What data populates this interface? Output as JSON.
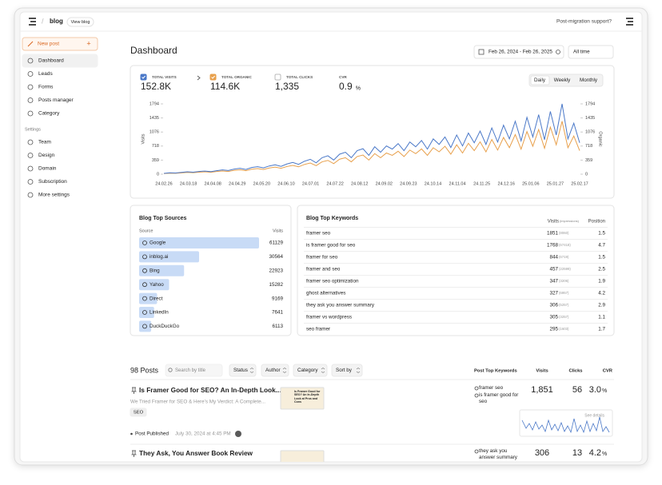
{
  "topbar": {
    "brand": "blog",
    "view_blog": "View blog",
    "support": "Post-migration support?"
  },
  "sidebar": {
    "new_post": "New post",
    "items": [
      "Dashboard",
      "Leads",
      "Forms",
      "Posts manager",
      "Category"
    ],
    "settings_label": "Settings",
    "settings_items": [
      "Team",
      "Design",
      "Domain",
      "Subscription",
      "More settings"
    ]
  },
  "dashboard": {
    "title": "Dashboard",
    "date_range": "Feb 26, 2024 - Feb 26, 2025",
    "period": "All time"
  },
  "metrics": [
    {
      "label": "TOTAL VISITS",
      "value": "152.8K"
    },
    {
      "label": "TOTAL ORGANIC",
      "value": "114.6K"
    },
    {
      "label": "TOTAL CLICKS",
      "value": "1,335"
    },
    {
      "label": "CVR",
      "value": "0.9",
      "unit": "%"
    }
  ],
  "granularity": [
    "Daily",
    "Weekly",
    "Monthly"
  ],
  "chart": {
    "type": "line",
    "ylabel": "Visits",
    "y2label": "Organic",
    "ylim": [
      0,
      1794
    ],
    "yticks": [
      0,
      359,
      718,
      1076,
      1435,
      1794
    ],
    "y2lim": [
      0,
      1794
    ],
    "y2ticks": [
      0,
      359,
      718,
      1076,
      1435,
      1794
    ],
    "xticks": [
      "24.02.26",
      "24.03.18",
      "24.04.08",
      "24.04.29",
      "24.05.20",
      "24.06.10",
      "24.07.01",
      "24.07.22",
      "24.08.12",
      "24.09.02",
      "24.09.23",
      "24.10.14",
      "24.11.04",
      "24.11.25",
      "24.12.16",
      "25.01.06",
      "25.01.27",
      "25.02.17"
    ],
    "grid": false,
    "series": [
      {
        "color": "#4a78c8",
        "values": [
          20,
          35,
          30,
          45,
          60,
          50,
          70,
          80,
          65,
          90,
          110,
          95,
          130,
          150,
          120,
          170,
          190,
          160,
          210,
          240,
          200,
          260,
          300,
          250,
          330,
          380,
          290,
          420,
          470,
          360,
          510,
          560,
          420,
          600,
          650,
          480,
          700,
          560,
          720,
          640,
          780,
          600,
          820,
          700,
          860,
          640,
          900,
          760,
          950,
          680,
          1000,
          720,
          1050,
          800,
          1100,
          760,
          1180,
          820,
          1250,
          900,
          1350,
          850,
          1450,
          950,
          1520,
          880,
          1600,
          1000,
          1794,
          900,
          1300,
          800
        ]
      },
      {
        "color": "#e8a04c",
        "axis": "y2",
        "values": [
          15,
          25,
          22,
          34,
          45,
          38,
          52,
          60,
          48,
          68,
          82,
          70,
          98,
          112,
          90,
          128,
          142,
          120,
          158,
          180,
          150,
          195,
          225,
          188,
          248,
          285,
          218,
          315,
          352,
          270,
          382,
          420,
          315,
          450,
          488,
          360,
          525,
          420,
          540,
          480,
          585,
          450,
          615,
          525,
          645,
          480,
          675,
          570,
          712,
          510,
          750,
          540,
          788,
          600,
          825,
          570,
          885,
          615,
          938,
          675,
          1012,
          638,
          1088,
          712,
          1140,
          660,
          1200,
          750,
          1350,
          675,
          975,
          600
        ]
      }
    ]
  },
  "sources": {
    "title": "Blog Top Sources",
    "headers": [
      "Source",
      "Visits"
    ],
    "rows": [
      {
        "name": "Google",
        "value": 61129
      },
      {
        "name": "inblog.ai",
        "value": 30564
      },
      {
        "name": "Bing",
        "value": 22923
      },
      {
        "name": "Yahoo",
        "value": 15282
      },
      {
        "name": "Direct",
        "value": 9169
      },
      {
        "name": "LinkedIn",
        "value": 7641
      },
      {
        "name": "DuckDuckGo",
        "value": 6113
      }
    ]
  },
  "keywords": {
    "title": "Blog Top Keywords",
    "headers": {
      "visits": "Visits",
      "impressions": "(impressions)",
      "position": "Position"
    },
    "rows": [
      {
        "keyword": "framer seo",
        "visits": 1851,
        "impressions": "(8060)",
        "position": 1.5
      },
      {
        "keyword": "is framer good for seo",
        "visits": 1768,
        "impressions": "(67418)",
        "position": 4.7
      },
      {
        "keyword": "framer for seo",
        "visits": 844,
        "impressions": "(6719)",
        "position": 1.5
      },
      {
        "keyword": "framer and seo",
        "visits": 457,
        "impressions": "(22599)",
        "position": 2.5
      },
      {
        "keyword": "framer seo optimization",
        "visits": 347,
        "impressions": "(3206)",
        "position": 1.9
      },
      {
        "keyword": "ghost alternatives",
        "visits": 327,
        "impressions": "(6957)",
        "position": 4.2
      },
      {
        "keyword": "they ask you answer summary",
        "visits": 306,
        "impressions": "(5257)",
        "position": 2.9
      },
      {
        "keyword": "framer vs wordpress",
        "visits": 305,
        "impressions": "(3257)",
        "position": 1.1
      },
      {
        "keyword": "seo framer",
        "visits": 295,
        "impressions": "(1603)",
        "position": 1.7
      }
    ]
  },
  "posts": {
    "count": "98 Posts",
    "search": "Search by title",
    "filters": [
      "Status",
      "Author",
      "Category",
      "Sort by"
    ],
    "columns": [
      "Post Top Keywords",
      "Visits",
      "Clicks",
      "CVR"
    ],
    "see_details": "See details",
    "items": [
      {
        "title": "Is Framer Good for SEO? An In-Depth Look...",
        "excerpt": "We Tried Framer for SEO & Here's My Verdict: A Complete...",
        "tag": "SEO",
        "thumbnail": "Is Framer Good for SEO? An In-Depth Look at Pros and Cons",
        "status": "Post Published",
        "date": "July 30, 2024 at 4:45 PM",
        "keywords": [
          "framer seo",
          "is framer good for seo"
        ],
        "visits": "1,851",
        "clicks": 56,
        "cvr": "3.0",
        "cvr_unit": "%"
      },
      {
        "title": "They Ask, You Answer Book Review",
        "keywords": [
          "they ask you answer summary"
        ],
        "visits": 306,
        "clicks": 13,
        "cvr": "4.2",
        "cvr_unit": "%"
      }
    ]
  }
}
